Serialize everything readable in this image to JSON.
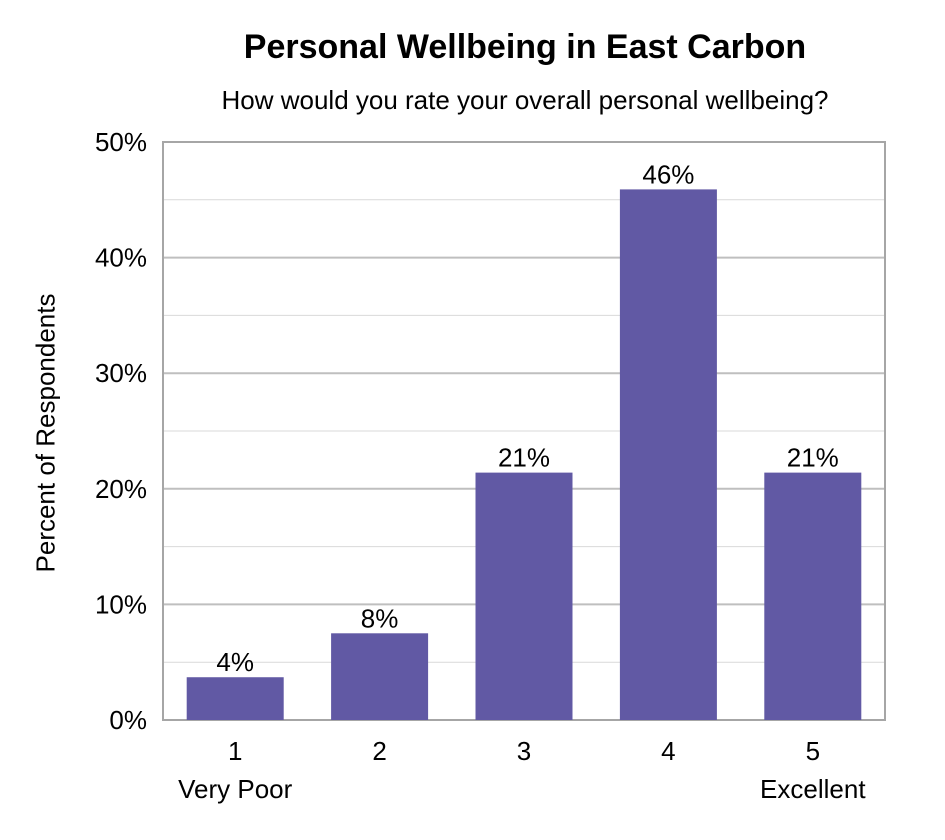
{
  "chart_data": {
    "type": "bar",
    "title": "Personal Wellbeing in East Carbon",
    "subtitle": "How would you rate your overall personal wellbeing?",
    "ylabel": "Percent of Respondents",
    "xlabel": "",
    "categories": [
      "1",
      "2",
      "3",
      "4",
      "5"
    ],
    "category_sublabels": [
      "Very Poor",
      "",
      "",
      "",
      "Excellent"
    ],
    "values": [
      3.7,
      7.5,
      21.4,
      45.9,
      21.4
    ],
    "data_labels": [
      "4%",
      "8%",
      "21%",
      "46%",
      "21%"
    ],
    "ylim": [
      0,
      50
    ],
    "yticks": [
      0,
      10,
      20,
      30,
      40,
      50
    ],
    "ytick_labels": [
      "0%",
      "10%",
      "20%",
      "30%",
      "40%",
      "50%"
    ],
    "grid": true,
    "legend": false,
    "bar_color": "#6159a4",
    "grid_color": "#bfbfbf",
    "border_color": "#a6a6a6"
  }
}
